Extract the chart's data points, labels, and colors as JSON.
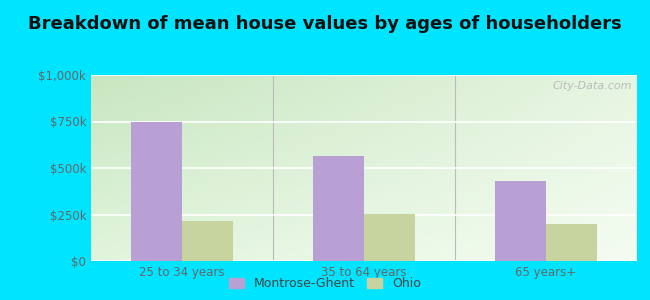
{
  "title": "Breakdown of mean house values by ages of householders",
  "categories": [
    "25 to 34 years",
    "35 to 64 years",
    "65 years+"
  ],
  "montrose_values": [
    750000,
    565000,
    430000
  ],
  "ohio_values": [
    215000,
    255000,
    200000
  ],
  "ylim": [
    0,
    1000000
  ],
  "yticks": [
    0,
    250000,
    500000,
    750000,
    1000000
  ],
  "ytick_labels": [
    "$0",
    "$250k",
    "$500k",
    "$750k",
    "$1,000k"
  ],
  "bar_color_montrose": "#b89fd4",
  "bar_color_ohio": "#c8d49f",
  "background_outer": "#00e5ff",
  "background_inner_topleft": "#c8e6c0",
  "background_inner_topright": "#e8f5e8",
  "background_inner_bottom": "#f0f8f0",
  "legend_label_montrose": "Montrose-Ghent",
  "legend_label_ohio": "Ohio",
  "watermark": "City-Data.com",
  "bar_width": 0.28,
  "title_fontsize": 13,
  "tick_fontsize": 8.5
}
